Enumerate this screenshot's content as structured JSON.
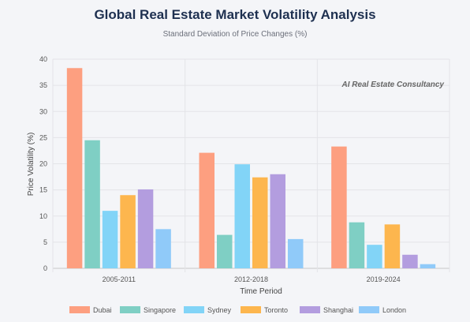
{
  "title": "Global Real Estate Market Volatility Analysis",
  "subtitle": "Standard Deviation of Price Changes (%)",
  "watermark": "AI Real Estate Consultancy",
  "chart_data": {
    "type": "bar",
    "categories": [
      "2005-2011",
      "2012-2018",
      "2019-2024"
    ],
    "series": [
      {
        "name": "Dubai",
        "values": [
          38.3,
          22.1,
          23.3
        ],
        "color": "#fd9f80"
      },
      {
        "name": "Singapore",
        "values": [
          24.5,
          6.4,
          8.8
        ],
        "color": "#7fcfc4"
      },
      {
        "name": "Sydney",
        "values": [
          11.0,
          19.9,
          4.5
        ],
        "color": "#82d4f7"
      },
      {
        "name": "Toronto",
        "values": [
          14.0,
          17.4,
          8.4
        ],
        "color": "#fdb64e"
      },
      {
        "name": "Shanghai",
        "values": [
          15.1,
          18.0,
          2.6
        ],
        "color": "#b39ddf"
      },
      {
        "name": "London",
        "values": [
          7.5,
          5.6,
          0.8
        ],
        "color": "#90caf9"
      }
    ],
    "xlabel": "Time Period",
    "ylabel": "Price Volatility (%)",
    "ylim": [
      0,
      40
    ],
    "yticks": [
      "0",
      "5",
      "10",
      "15",
      "20",
      "25",
      "30",
      "35",
      "40"
    ],
    "grid": true,
    "legend_position": "bottom"
  }
}
